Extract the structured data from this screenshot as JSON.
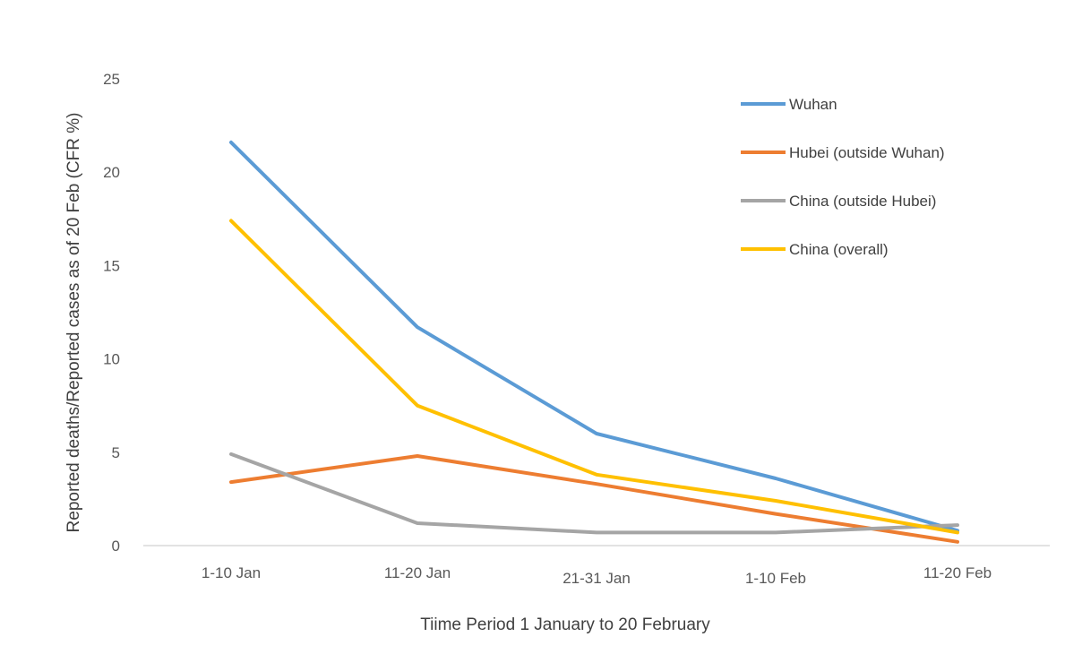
{
  "chart_data": {
    "type": "line",
    "title": "",
    "xlabel": "Tiime Period 1 January to 20 February",
    "ylabel": "Reported deaths/Reported  cases as of 20 Feb (CFR %)",
    "categories": [
      "1-10 Jan",
      "11-20 Jan",
      "21-31 Jan",
      "1-10 Feb",
      "11-20 Feb"
    ],
    "ylim": [
      0,
      25
    ],
    "yticks": [
      0,
      5,
      10,
      15,
      20,
      25
    ],
    "grid": false,
    "legend_position": "top-right",
    "series": [
      {
        "name": "Wuhan",
        "color": "#5B9BD5",
        "values": [
          21.6,
          11.7,
          6.0,
          3.6,
          0.8
        ]
      },
      {
        "name": "Hubei (outside Wuhan)",
        "color": "#ED7D31",
        "values": [
          3.4,
          4.8,
          3.3,
          1.7,
          0.2
        ]
      },
      {
        "name": "China (outside Hubei)",
        "color": "#A5A5A5",
        "values": [
          4.9,
          1.2,
          0.7,
          0.7,
          1.1
        ]
      },
      {
        "name": "China (overall)",
        "color": "#FFC000",
        "values": [
          17.4,
          7.5,
          3.8,
          2.4,
          0.7
        ]
      }
    ]
  }
}
